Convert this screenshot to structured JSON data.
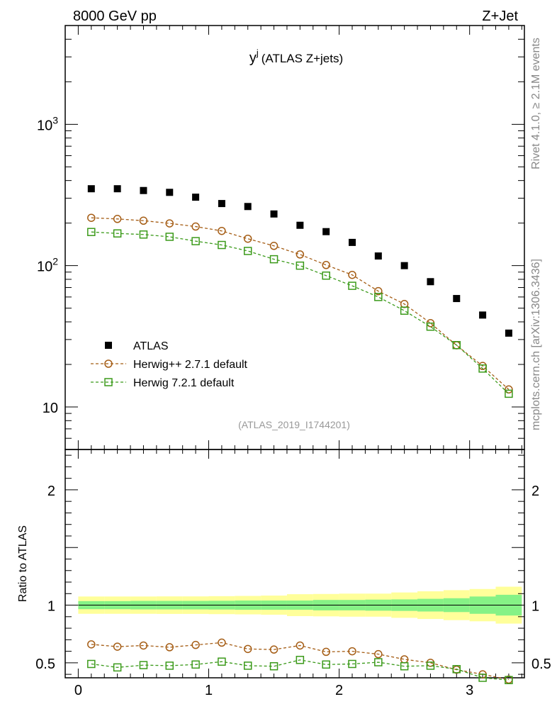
{
  "header": {
    "left": "8000 GeV pp",
    "right": "Z+Jet"
  },
  "side_labels": {
    "rivet": "Rivet 4.1.0, ≥ 2.1M events",
    "mcplots": "mcplots.cern.ch [arXiv:1306.3436]"
  },
  "chart_data": {
    "type": "scatter",
    "title_main": "y",
    "title_sup": "j",
    "title_rest": "(ATLAS Z+jets)",
    "analysis_id": "(ATLAS_2019_I1744201)",
    "xlabel": "",
    "ylabel_ratio": "Ratio to ATLAS",
    "xlim": [
      -0.1,
      3.42
    ],
    "ylim_main": [
      5,
      5000
    ],
    "ylim_ratio": [
      0.37,
      2.35
    ],
    "main_yticks": [
      {
        "value": 1000,
        "base": "10",
        "exp": "3"
      },
      {
        "value": 100,
        "base": "10",
        "exp": "2"
      },
      {
        "value": 10,
        "base": "10",
        "exp": ""
      }
    ],
    "ratio_yticks": [
      {
        "value": 2,
        "label": "2"
      },
      {
        "value": 1,
        "label": "1"
      },
      {
        "value": 0.5,
        "label": "0.5"
      }
    ],
    "xticks": [
      {
        "value": 0,
        "label": "0"
      },
      {
        "value": 1,
        "label": "1"
      },
      {
        "value": 2,
        "label": "2"
      },
      {
        "value": 3,
        "label": "3"
      }
    ],
    "x": [
      0.1,
      0.3,
      0.5,
      0.7,
      0.9,
      1.1,
      1.3,
      1.5,
      1.7,
      1.9,
      2.1,
      2.3,
      2.5,
      2.7,
      2.9,
      3.1,
      3.3
    ],
    "bin_edges": [
      0.0,
      0.2,
      0.4,
      0.6,
      0.8,
      1.0,
      1.2,
      1.4,
      1.6,
      1.8,
      2.0,
      2.2,
      2.4,
      2.6,
      2.8,
      3.0,
      3.2,
      3.4
    ],
    "series": [
      {
        "name": "ATLAS",
        "color": "#000000",
        "marker": "filled-square",
        "values": [
          350,
          350,
          340,
          330,
          305,
          275,
          262,
          232,
          193,
          174,
          146,
          117,
          100,
          77,
          58.5,
          44.7,
          33.3
        ],
        "ratio": [
          1,
          1,
          1,
          1,
          1,
          1,
          1,
          1,
          1,
          1,
          1,
          1,
          1,
          1,
          1,
          1,
          1
        ]
      },
      {
        "name": "Herwig++ 2.7.1 default",
        "color": "#a55d15",
        "marker": "open-circle",
        "values": [
          218,
          214,
          208,
          199,
          189,
          176,
          155,
          138,
          120,
          101,
          86,
          66,
          53.5,
          39.2,
          27.3,
          19.5,
          13.3
        ],
        "ratio": [
          0.66,
          0.64,
          0.65,
          0.635,
          0.655,
          0.675,
          0.62,
          0.615,
          0.65,
          0.595,
          0.6,
          0.575,
          0.53,
          0.5,
          0.44,
          0.4,
          0.355
        ]
      },
      {
        "name": "Herwig 7.2.1 default",
        "color": "#3b9a1a",
        "marker": "open-square",
        "values": [
          173,
          169,
          166,
          160,
          149,
          140,
          127,
          111,
          100,
          85,
          72,
          60,
          48,
          37,
          27.4,
          18.7,
          12.4
        ],
        "ratio": [
          0.49,
          0.46,
          0.48,
          0.475,
          0.485,
          0.51,
          0.475,
          0.47,
          0.525,
          0.485,
          0.49,
          0.505,
          0.47,
          0.475,
          0.445,
          0.37,
          0.35
        ]
      }
    ],
    "uncertainty_bands": {
      "stat_color": "#86f286",
      "total_color": "#ffff9a",
      "stat_halfwidth": [
        0.035,
        0.035,
        0.037,
        0.037,
        0.037,
        0.038,
        0.04,
        0.04,
        0.04,
        0.045,
        0.045,
        0.048,
        0.05,
        0.055,
        0.06,
        0.075,
        0.09
      ],
      "total_halfwidth": [
        0.075,
        0.075,
        0.075,
        0.076,
        0.076,
        0.078,
        0.08,
        0.083,
        0.095,
        0.097,
        0.1,
        0.1,
        0.11,
        0.12,
        0.13,
        0.14,
        0.16
      ]
    }
  }
}
